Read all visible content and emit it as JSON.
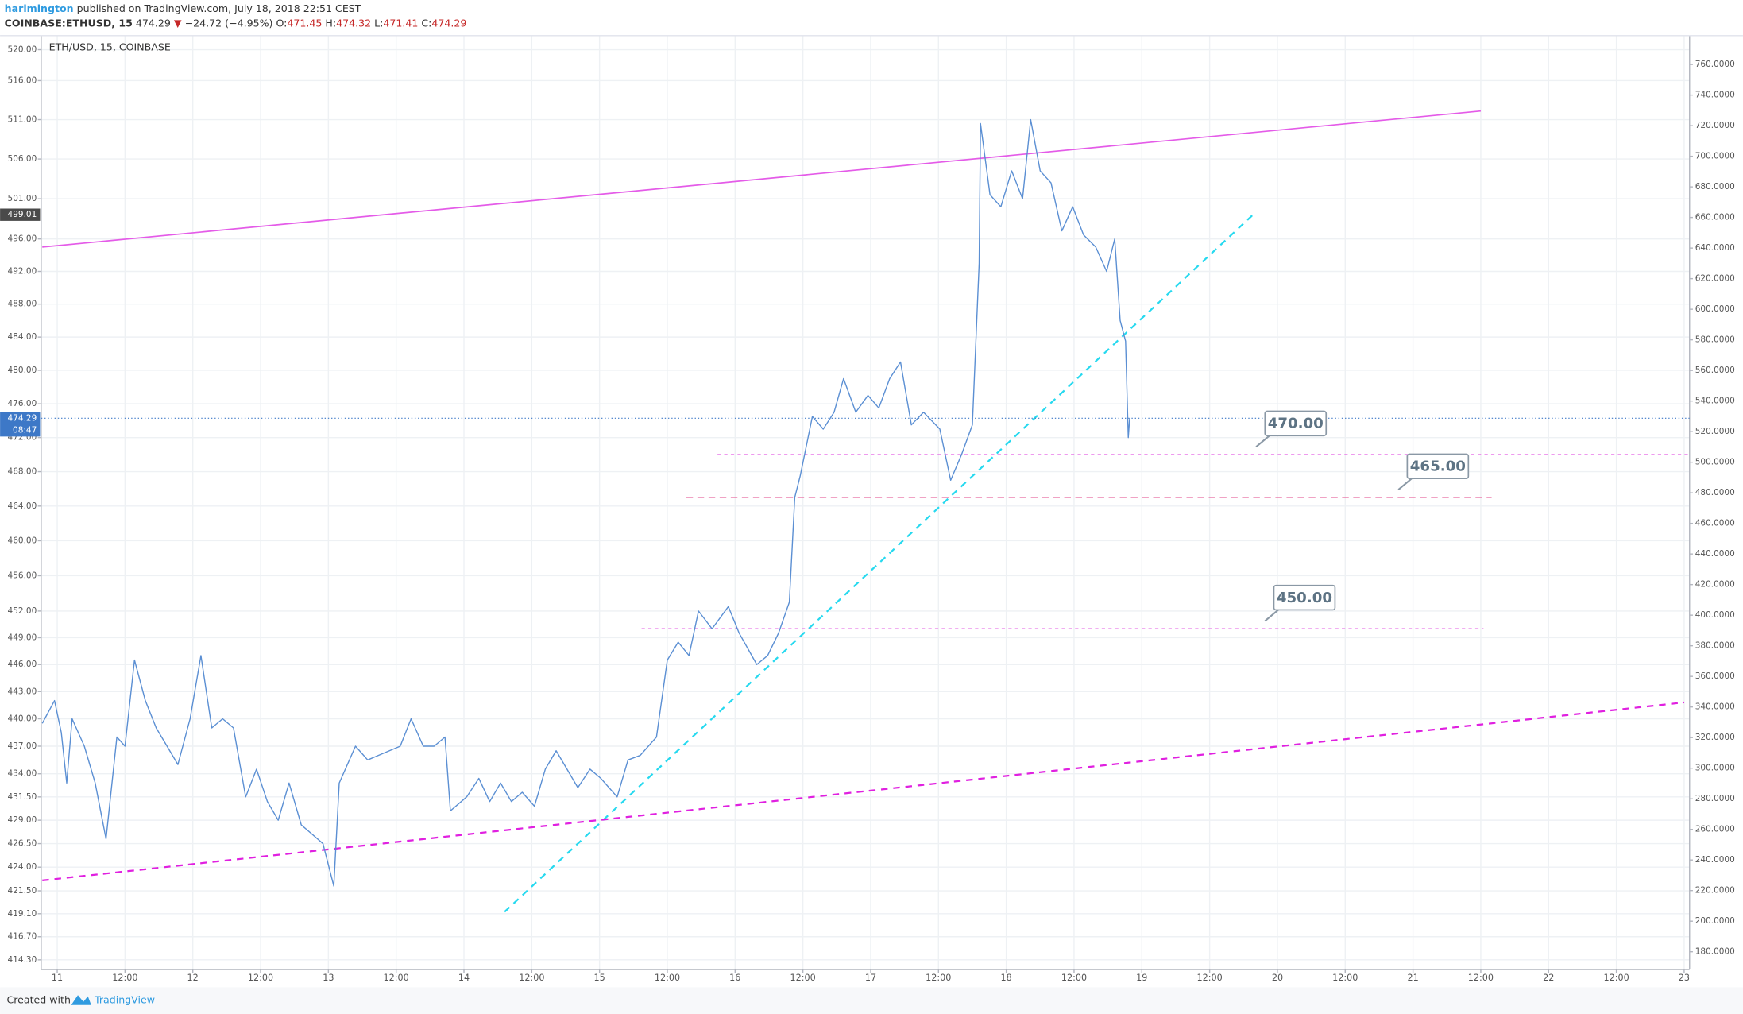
{
  "header": {
    "author": "harlmington",
    "published": "published on TradingView.com, July 18, 2018 22:51 CEST",
    "symbol": "COINBASE:ETHUSD, 15",
    "last": "474.29",
    "change": "−24.72 (−4.95%)",
    "ohlc": [
      {
        "label": "O:",
        "value": "471.45"
      },
      {
        "label": "H:",
        "value": "474.32"
      },
      {
        "label": "L:",
        "value": "471.41"
      },
      {
        "label": "C:",
        "value": "474.29"
      }
    ]
  },
  "footer": {
    "created": "Created with",
    "brand": "TradingView"
  },
  "chart_data": {
    "type": "line",
    "title": "ETH/USD, 15, COINBASE",
    "log_scale": true,
    "grid": true,
    "x": [
      -0.11,
      -0.02,
      0.03,
      0.07,
      0.11,
      0.2,
      0.28,
      0.36,
      0.44,
      0.5,
      0.57,
      0.65,
      0.73,
      0.81,
      0.89,
      0.98,
      1.06,
      1.14,
      1.22,
      1.3,
      1.39,
      1.47,
      1.55,
      1.63,
      1.71,
      1.8,
      1.88,
      1.96,
      2.04,
      2.08,
      2.2,
      2.29,
      2.37,
      2.45,
      2.53,
      2.61,
      2.7,
      2.78,
      2.86,
      2.9,
      3.02,
      3.11,
      3.19,
      3.27,
      3.35,
      3.43,
      3.52,
      3.6,
      3.68,
      3.76,
      3.84,
      3.93,
      4.01,
      4.13,
      4.21,
      4.3,
      4.42,
      4.5,
      4.58,
      4.66,
      4.73,
      4.83,
      4.95,
      5.03,
      5.16,
      5.24,
      5.32,
      5.4,
      5.44,
      5.48,
      5.57,
      5.65,
      5.73,
      5.8,
      5.89,
      5.98,
      6.06,
      6.14,
      6.22,
      6.3,
      6.39,
      6.51,
      6.59,
      6.67,
      6.75,
      6.8,
      6.81,
      6.88,
      6.96,
      7.04,
      7.12,
      7.18,
      7.25,
      7.33,
      7.41,
      7.49,
      7.57,
      7.66,
      7.74,
      7.8,
      7.84,
      7.88,
      7.9,
      7.91
    ],
    "series": [
      {
        "color": "#5b8fd3",
        "values": [
          439.5,
          442,
          438.5,
          433,
          440,
          437,
          433,
          427,
          438,
          437,
          446.5,
          442,
          439,
          437,
          435,
          440,
          447,
          439,
          440,
          439,
          431.5,
          434.5,
          431,
          429,
          433,
          428.5,
          427.5,
          426.5,
          422,
          433,
          437,
          435.5,
          436,
          436.5,
          437,
          440,
          437,
          437,
          438,
          430,
          431.5,
          433.5,
          431,
          433,
          431,
          432,
          430.5,
          434.5,
          436.5,
          434.5,
          432.5,
          434.5,
          433.5,
          431.5,
          435.5,
          436,
          438,
          446.5,
          448.5,
          447,
          452,
          450,
          452.5,
          449.5,
          446,
          447,
          449.5,
          453,
          465,
          467.5,
          474.5,
          473,
          475,
          479,
          475,
          477,
          475.5,
          479,
          481,
          473.5,
          475,
          473,
          467,
          470,
          473.5,
          493,
          510.5,
          501.5,
          500,
          504.5,
          501,
          511,
          504.5,
          503,
          497,
          500,
          496.5,
          495,
          492,
          496,
          486,
          483.5,
          472,
          474.29
        ]
      }
    ],
    "xlim": [
      -0.11,
      12.04
    ],
    "xticks": [
      {
        "value": 0,
        "label": "11"
      },
      {
        "value": 0.5,
        "label": "12:00"
      },
      {
        "value": 1,
        "label": "12"
      },
      {
        "value": 1.5,
        "label": "12:00"
      },
      {
        "value": 2,
        "label": "13"
      },
      {
        "value": 2.5,
        "label": "12:00"
      },
      {
        "value": 3,
        "label": "14"
      },
      {
        "value": 3.5,
        "label": "12:00"
      },
      {
        "value": 4,
        "label": "15"
      },
      {
        "value": 4.5,
        "label": "12:00"
      },
      {
        "value": 5,
        "label": "16"
      },
      {
        "value": 5.5,
        "label": "12:00"
      },
      {
        "value": 6,
        "label": "17"
      },
      {
        "value": 6.5,
        "label": "12:00"
      },
      {
        "value": 7,
        "label": "18"
      },
      {
        "value": 7.5,
        "label": "12:00"
      },
      {
        "value": 8,
        "label": "19"
      },
      {
        "value": 8.5,
        "label": "12:00"
      },
      {
        "value": 9,
        "label": "20"
      },
      {
        "value": 9.5,
        "label": "12:00"
      },
      {
        "value": 10,
        "label": "21"
      },
      {
        "value": 10.5,
        "label": "12:00"
      },
      {
        "value": 11,
        "label": "22"
      },
      {
        "value": 11.5,
        "label": "12:00"
      },
      {
        "value": 12,
        "label": "23"
      }
    ],
    "ylim": [
      413.3,
      521.4
    ],
    "yticks": [
      {
        "value": 520,
        "label": "520.00"
      },
      {
        "value": 516,
        "label": "516.00"
      },
      {
        "value": 511,
        "label": "511.00"
      },
      {
        "value": 506,
        "label": "506.00"
      },
      {
        "value": 501,
        "label": "501.00"
      },
      {
        "value": 496,
        "label": "496.00"
      },
      {
        "value": 492,
        "label": "492.00"
      },
      {
        "value": 488,
        "label": "488.00"
      },
      {
        "value": 484,
        "label": "484.00"
      },
      {
        "value": 480,
        "label": "480.00"
      },
      {
        "value": 476,
        "label": "476.00"
      },
      {
        "value": 472,
        "label": "472.00"
      },
      {
        "value": 468,
        "label": "468.00"
      },
      {
        "value": 464,
        "label": "464.00"
      },
      {
        "value": 460,
        "label": "460.00"
      },
      {
        "value": 456,
        "label": "456.00"
      },
      {
        "value": 452,
        "label": "452.00"
      },
      {
        "value": 449,
        "label": "449.00"
      },
      {
        "value": 446,
        "label": "446.00"
      },
      {
        "value": 443,
        "label": "443.00"
      },
      {
        "value": 440,
        "label": "440.00"
      },
      {
        "value": 437,
        "label": "437.00"
      },
      {
        "value": 434,
        "label": "434.00"
      },
      {
        "value": 431.5,
        "label": "431.50"
      },
      {
        "value": 429,
        "label": "429.00"
      },
      {
        "value": 426.5,
        "label": "426.50"
      },
      {
        "value": 424,
        "label": "424.00"
      },
      {
        "value": 421.5,
        "label": "421.50"
      },
      {
        "value": 419.1,
        "label": "419.10"
      },
      {
        "value": 416.7,
        "label": "416.70"
      },
      {
        "value": 414.3,
        "label": "414.30"
      }
    ],
    "y2lim": [
      168.4,
      776.7
    ],
    "y2ticks": [
      {
        "value": 760,
        "label": "760.0000"
      },
      {
        "value": 740,
        "label": "740.0000"
      },
      {
        "value": 720,
        "label": "720.0000"
      },
      {
        "value": 700,
        "label": "700.0000"
      },
      {
        "value": 680,
        "label": "680.0000"
      },
      {
        "value": 660,
        "label": "660.0000"
      },
      {
        "value": 640,
        "label": "640.0000"
      },
      {
        "value": 620,
        "label": "620.0000"
      },
      {
        "value": 600,
        "label": "600.0000"
      },
      {
        "value": 580,
        "label": "580.0000"
      },
      {
        "value": 560,
        "label": "560.0000"
      },
      {
        "value": 540,
        "label": "540.0000"
      },
      {
        "value": 520,
        "label": "520.0000"
      },
      {
        "value": 500,
        "label": "500.0000"
      },
      {
        "value": 480,
        "label": "480.0000"
      },
      {
        "value": 460,
        "label": "460.0000"
      },
      {
        "value": 440,
        "label": "440.0000"
      },
      {
        "value": 420,
        "label": "420.0000"
      },
      {
        "value": 400,
        "label": "400.0000"
      },
      {
        "value": 380,
        "label": "380.0000"
      },
      {
        "value": 360,
        "label": "360.0000"
      },
      {
        "value": 340,
        "label": "340.0000"
      },
      {
        "value": 320,
        "label": "320.0000"
      },
      {
        "value": 300,
        "label": "300.0000"
      },
      {
        "value": 280,
        "label": "280.0000"
      },
      {
        "value": 260,
        "label": "260.0000"
      },
      {
        "value": 240,
        "label": "240.0000"
      },
      {
        "value": 220,
        "label": "220.0000"
      },
      {
        "value": 200,
        "label": "200.0000"
      },
      {
        "value": 180,
        "label": "180.0000"
      }
    ],
    "trend_lines": [
      {
        "color": "#e45be8",
        "dashed": false,
        "x": [
          -0.11,
          10.5
        ],
        "values": [
          495.0,
          512.1
        ]
      },
      {
        "color": "#26d9ef",
        "dashed": true,
        "x": [
          3.3,
          8.82
        ],
        "values": [
          419.3,
          499.01
        ]
      },
      {
        "color": "#e020e0",
        "dashed": true,
        "x": [
          -0.11,
          12.0
        ],
        "values": [
          422.6,
          441.8
        ]
      }
    ],
    "levels": [
      {
        "value": 470,
        "label": "470.00",
        "color": "#e35ee3",
        "x": [
          4.87,
          12.04
        ]
      },
      {
        "value": 465,
        "label": "465.00",
        "color": "#e86aa0",
        "x": [
          4.64,
          10.58
        ]
      },
      {
        "value": 450,
        "label": "450.00",
        "color": "#e35ee3",
        "x": [
          4.31,
          10.52
        ]
      }
    ],
    "last_price": 474.29,
    "countdown": "08:47"
  }
}
